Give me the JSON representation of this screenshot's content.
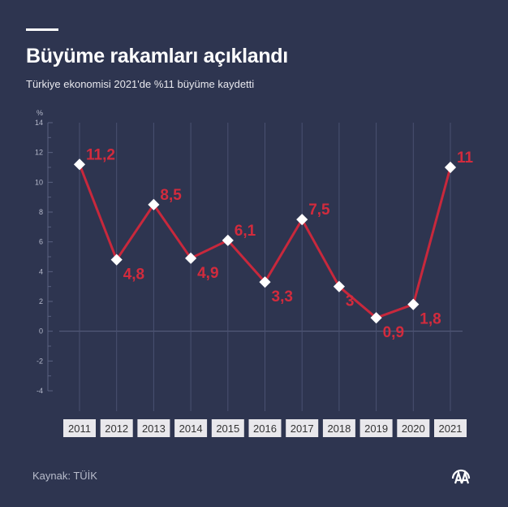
{
  "header": {
    "title": "Büyüme rakamları açıklandı",
    "subtitle": "Türkiye ekonomisi 2021'de %11 büyüme kaydetti"
  },
  "footer": {
    "source": "Kaynak: TÜİK",
    "logo": "AA"
  },
  "colors": {
    "background": "#2e3550",
    "line": "#c8283c",
    "label": "#d22b3d",
    "marker": "#ffffff"
  },
  "chart_data": {
    "type": "line",
    "title": "Büyüme rakamları açıklandı",
    "subtitle": "Türkiye ekonomisi 2021'de %11 büyüme kaydetti",
    "ylabel": "%",
    "ylim": [
      -4,
      14
    ],
    "yticks": [
      14,
      12,
      10,
      8,
      6,
      4,
      2,
      0,
      -2,
      -4
    ],
    "categories": [
      "2011",
      "2012",
      "2013",
      "2014",
      "2015",
      "2016",
      "2017",
      "2018",
      "2019",
      "2020",
      "2021"
    ],
    "values": [
      11.2,
      4.8,
      8.5,
      4.9,
      6.1,
      3.3,
      7.5,
      3,
      0.9,
      1.8,
      11
    ],
    "data_labels": [
      "11,2",
      "4,8",
      "8,5",
      "4,9",
      "6,1",
      "3,3",
      "7,5",
      "3",
      "0,9",
      "1,8",
      "11"
    ],
    "grid": "vertical lines at categories, zero line",
    "legend": "none"
  }
}
